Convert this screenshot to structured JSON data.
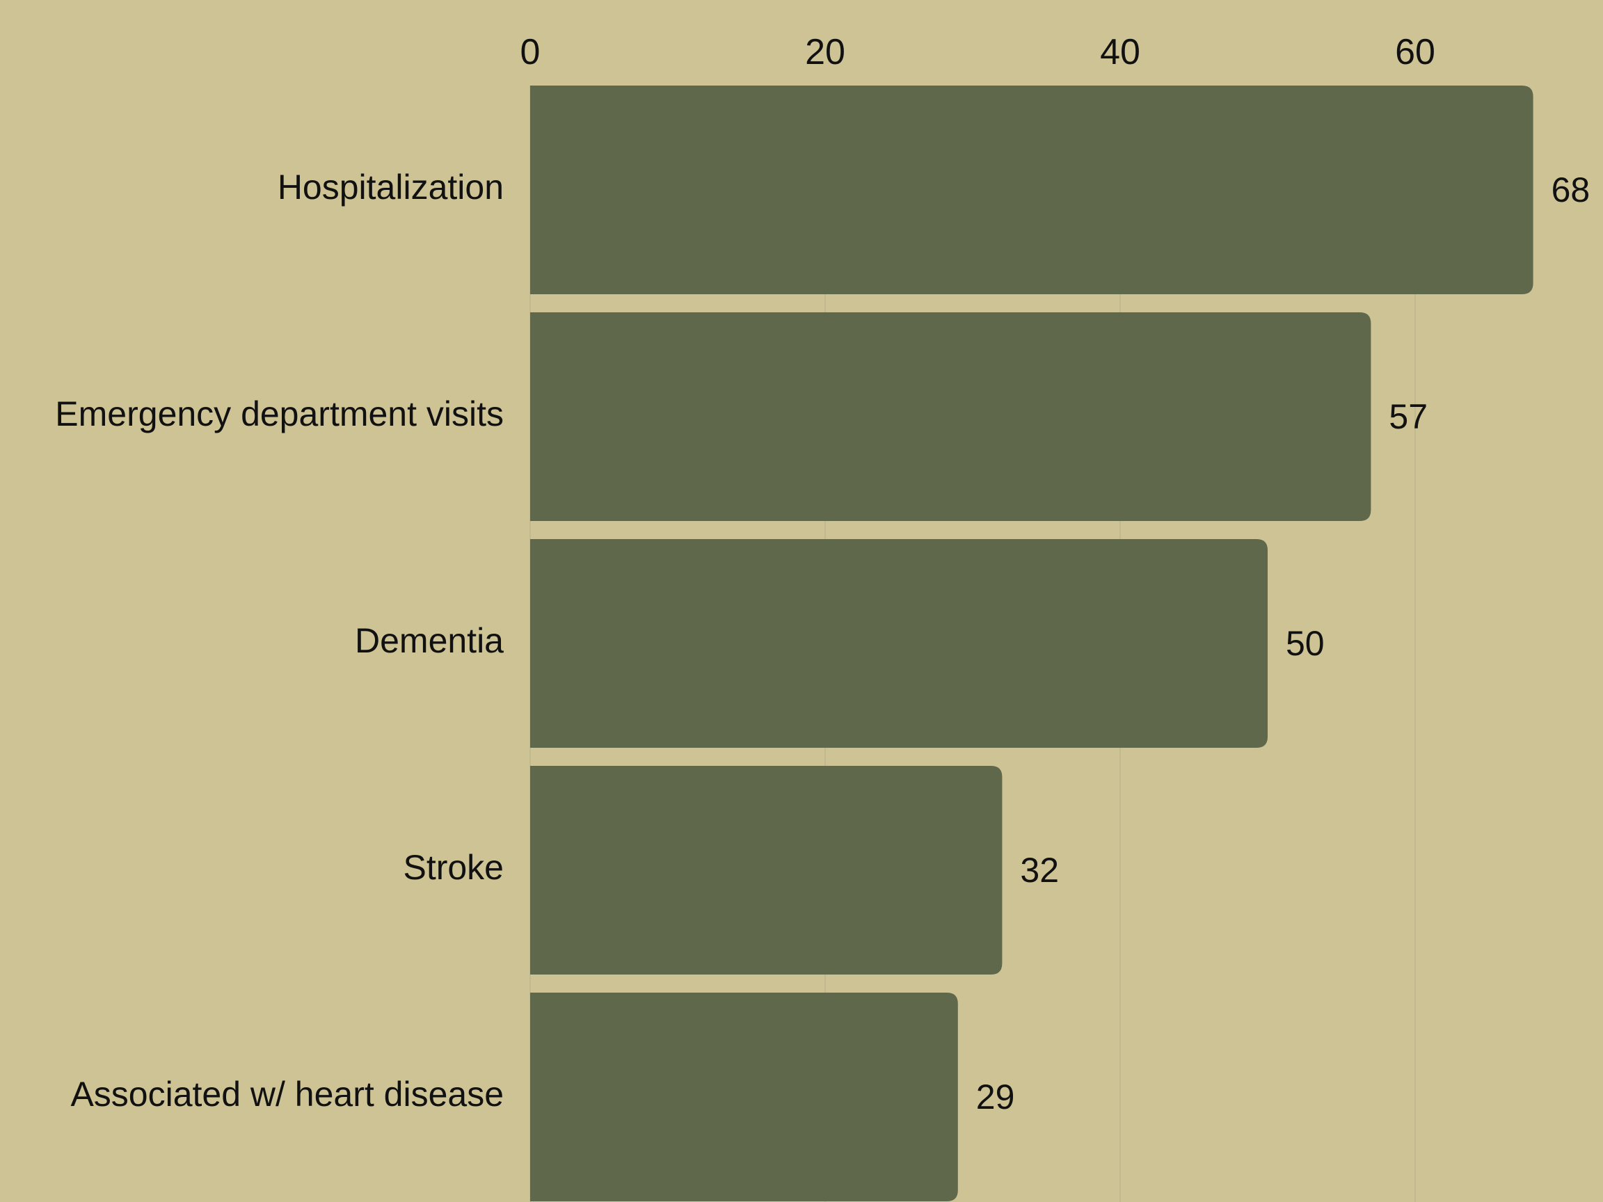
{
  "chart_data": {
    "type": "bar",
    "orientation": "horizontal",
    "categories": [
      "Hospitalization",
      "Emergency department visits",
      "Dementia",
      "Stroke",
      "Associated w/ heart disease"
    ],
    "values": [
      68,
      57,
      50,
      32,
      29
    ],
    "xlim": [
      0,
      70
    ],
    "xticks": [
      0,
      20,
      40,
      60
    ],
    "title": "",
    "xlabel": "",
    "ylabel": "",
    "data_labels": true,
    "grid": "vertical",
    "axis_position": "top",
    "legend": "none",
    "colors": {
      "background": "#cdc394",
      "bar": "#5f684b",
      "grid": "#bcb68f",
      "text": "#111111"
    }
  }
}
